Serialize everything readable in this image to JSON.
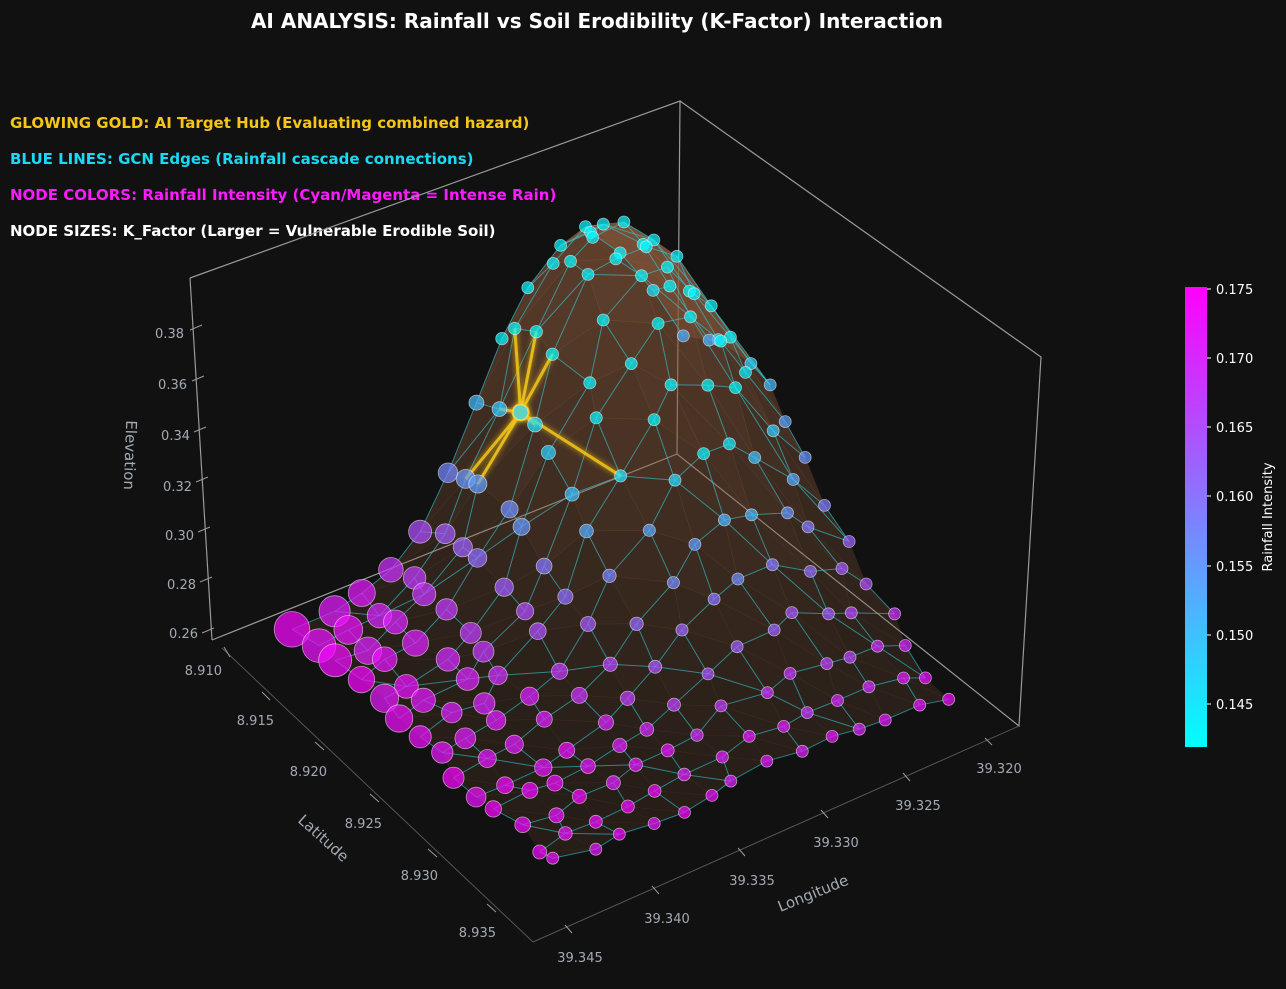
{
  "chart_data": {
    "type": "scatter",
    "subtype": "3d-network-surface",
    "title": "AI ANALYSIS: Rainfall vs Soil Erodibility (K-Factor) Interaction",
    "annotations": [
      {
        "text": "GLOWING GOLD: AI Target Hub (Evaluating combined hazard)",
        "color": "#f5c518"
      },
      {
        "text": "BLUE LINES: GCN Edges (Rainfall cascade connections)",
        "color": "#19d9f5"
      },
      {
        "text": "NODE COLORS: Rainfall Intensity (Cyan/Magenta = Intense Rain)",
        "color": "#ff1aff"
      },
      {
        "text": "NODE SIZES: K_Factor (Larger = Vulnerable Erodible Soil)",
        "color": "#ffffff"
      }
    ],
    "axes": {
      "latitude": {
        "label": "Latitude",
        "ticks": [
          "8.910",
          "8.915",
          "8.920",
          "8.925",
          "8.930",
          "8.935"
        ],
        "range": [
          8.908,
          8.937
        ]
      },
      "longitude": {
        "label": "Longitude",
        "ticks": [
          "39.320",
          "39.325",
          "39.330",
          "39.335",
          "39.340",
          "39.345"
        ],
        "range": [
          39.317,
          39.346
        ]
      },
      "elevation": {
        "label": "Elevation",
        "ticks": [
          "0.26",
          "0.28",
          "0.30",
          "0.32",
          "0.34",
          "0.36",
          "0.38"
        ],
        "range": [
          0.255,
          0.39
        ]
      }
    },
    "colorbar": {
      "label": "Rainfall Intensity",
      "ticks": [
        "0.145",
        "0.150",
        "0.155",
        "0.160",
        "0.165",
        "0.170",
        "0.175"
      ],
      "range": [
        0.142,
        0.175
      ],
      "colormap": "cool",
      "color_low": "#00ffff",
      "color_high": "#ff00ff"
    },
    "nodes": {
      "grid_rows": 14,
      "grid_cols": 14,
      "lat_range": [
        8.912,
        8.934
      ],
      "lon_range": [
        39.319,
        39.343
      ],
      "elevation_range": [
        0.262,
        0.385
      ],
      "rainfall_range": [
        0.143,
        0.175
      ],
      "k_factor_range": [
        0.02,
        0.06
      ],
      "note_colors": "cyan on the high ridge, magenta at the low southern edge"
    },
    "surface_color": "#8a5a3c",
    "edge_color": "#2ad4e6",
    "hub_color": "#f5c518",
    "pane_line_color": "#9a9a9a",
    "background": "#111111"
  }
}
